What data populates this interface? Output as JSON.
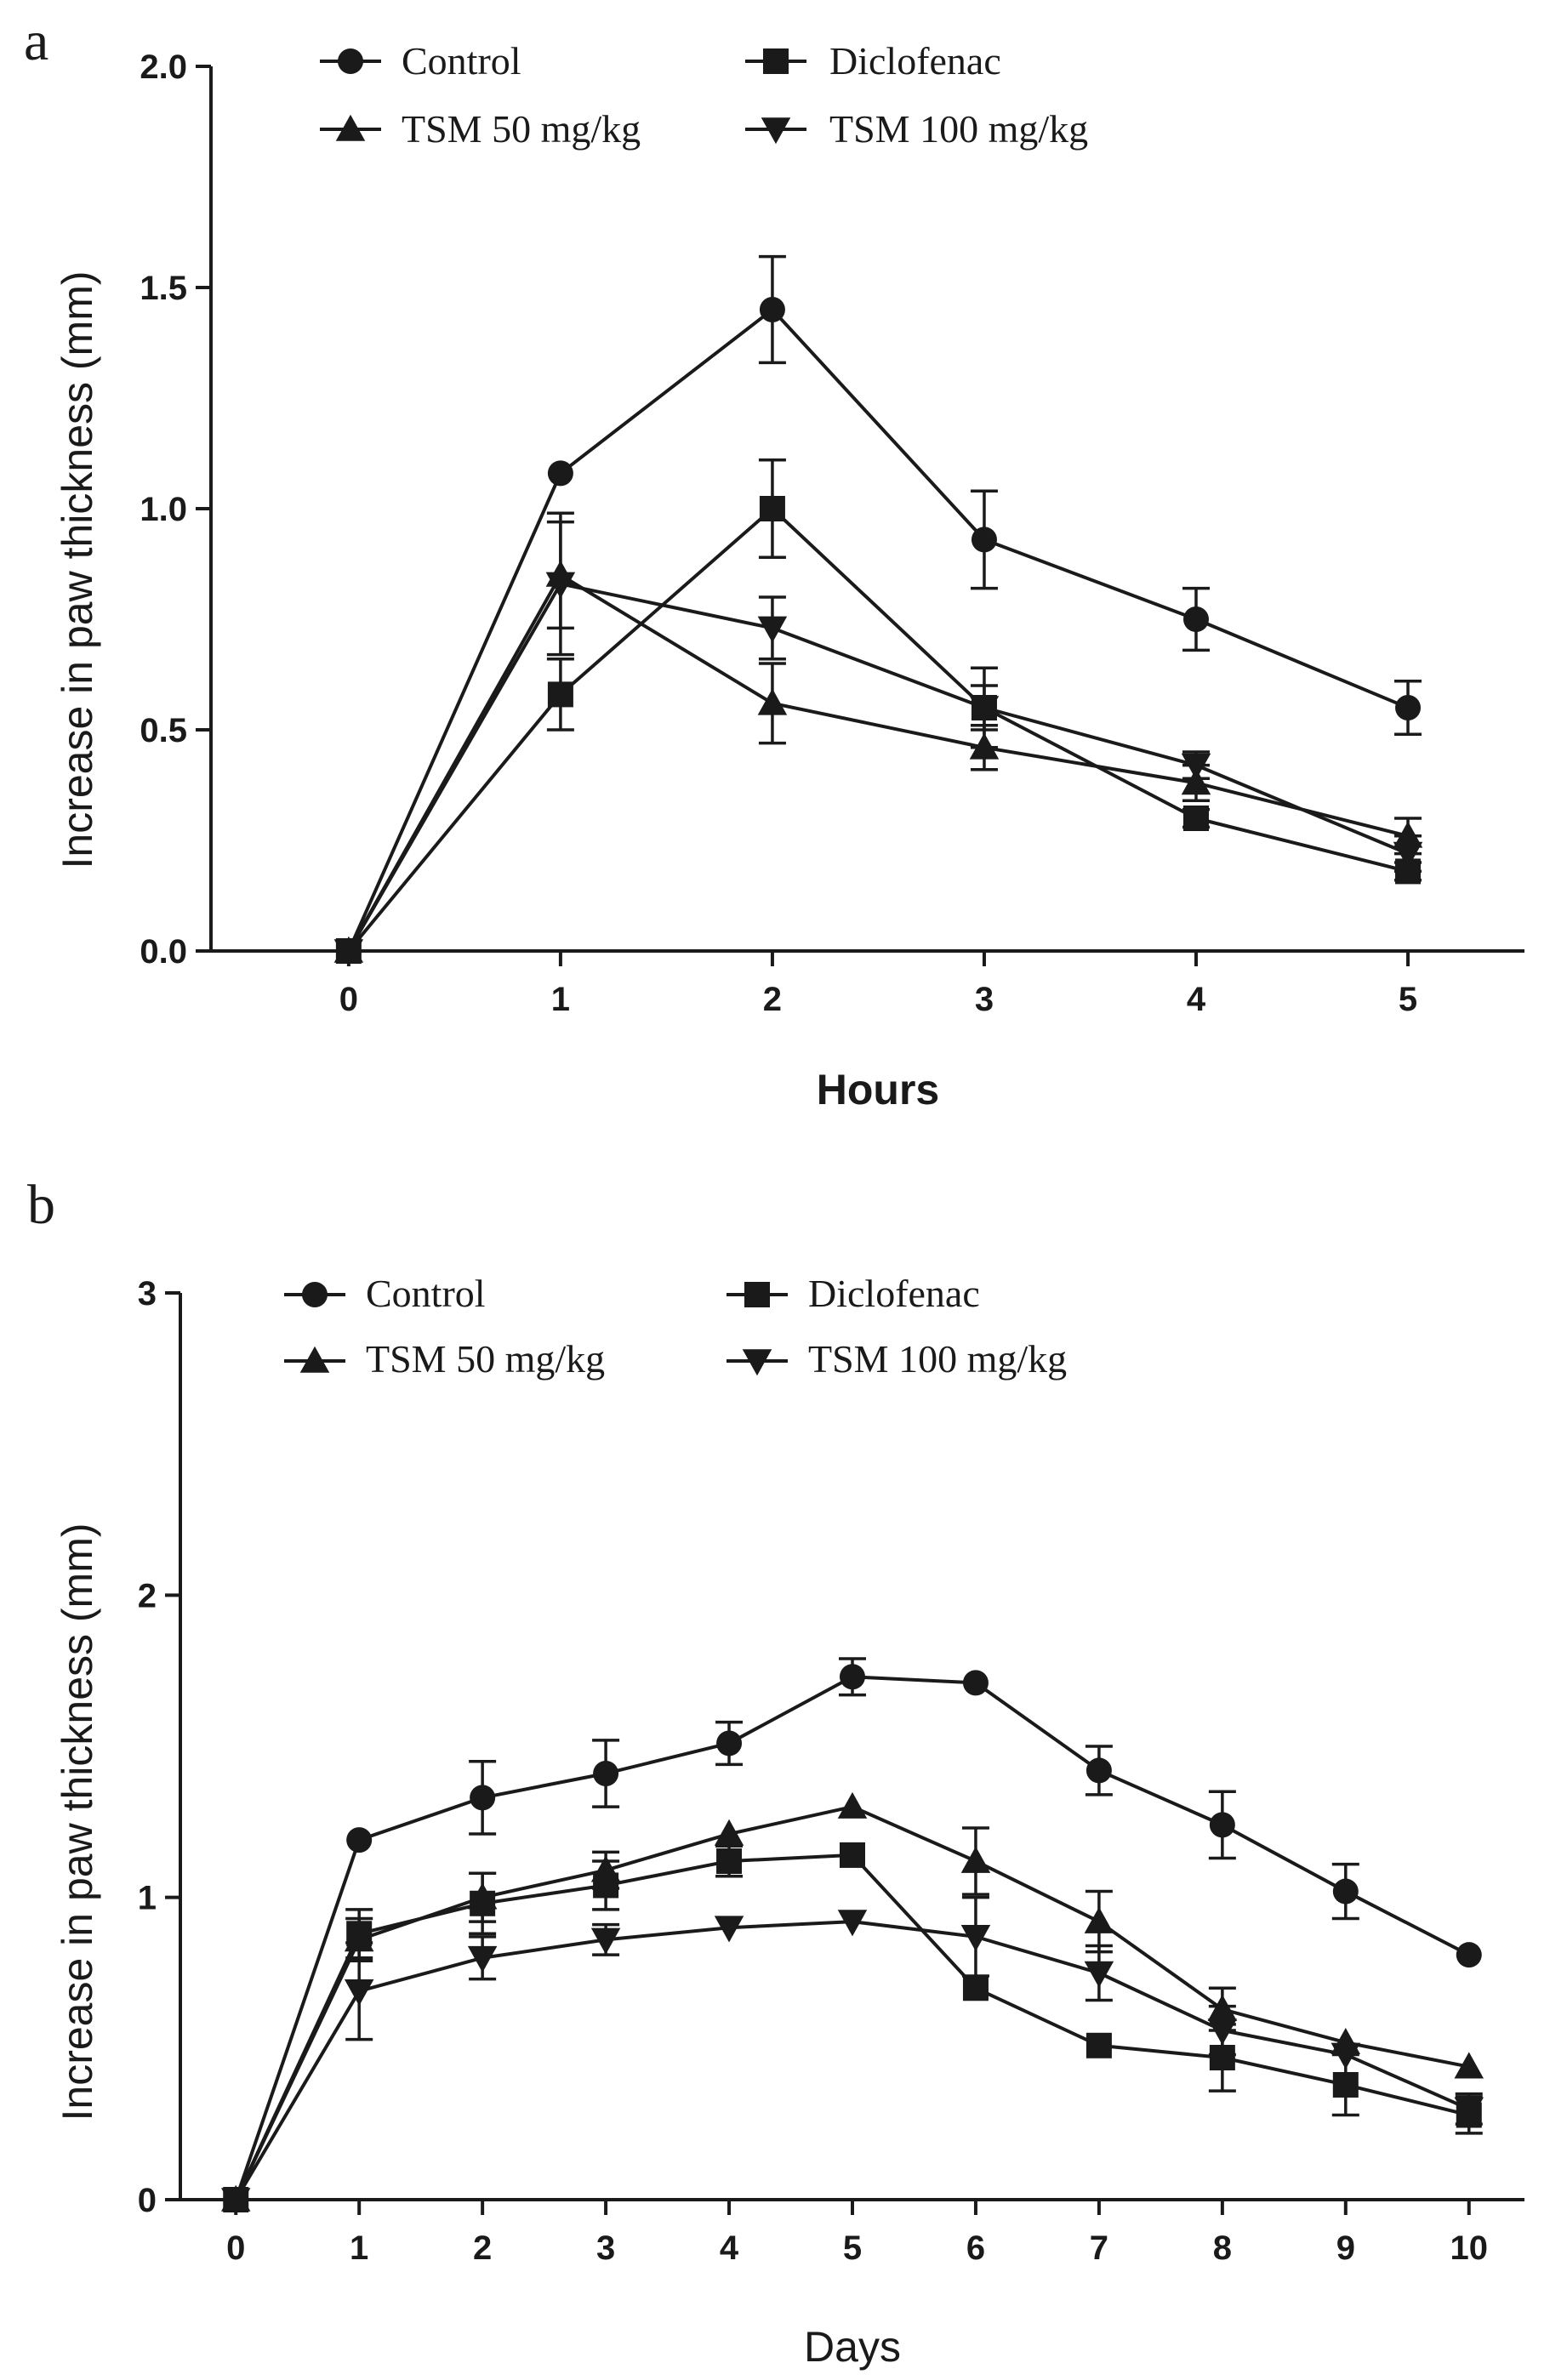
{
  "colors": {
    "ink": "#1a1a1a",
    "background": "#ffffff"
  },
  "chart_data": [
    {
      "panel_label": "a",
      "type": "line",
      "xlabel": "Hours",
      "xlabel_bold": true,
      "ylabel": "Increase in paw thickness (mm)",
      "x": [
        0,
        1,
        2,
        3,
        4,
        5
      ],
      "xticks": [
        "0",
        "1",
        "2",
        "3",
        "4",
        "5"
      ],
      "xlim": [
        -0.65,
        5.55
      ],
      "ylim": [
        0,
        2
      ],
      "yticks": [
        "0.0",
        "0.5",
        "1.0",
        "1.5",
        "2.0"
      ],
      "grid": false,
      "legend_position": "top-left",
      "series": [
        {
          "name": "Control",
          "marker": "circle",
          "values": [
            0,
            1.08,
            1.45,
            0.93,
            0.75,
            0.55
          ],
          "error": [
            0,
            0,
            0.12,
            0.11,
            0.07,
            0.06
          ]
        },
        {
          "name": "Diclofenac",
          "marker": "square",
          "values": [
            0,
            0.58,
            1.0,
            0.55,
            0.3,
            0.18
          ],
          "error": [
            0,
            0.08,
            0.11,
            0.05,
            0.02,
            0.02
          ]
        },
        {
          "name": "TSM 50 mg/kg",
          "marker": "triangle-up",
          "values": [
            0,
            0.85,
            0.56,
            0.46,
            0.38,
            0.26
          ],
          "error": [
            0,
            0.12,
            0.09,
            0.05,
            0.04,
            0.04
          ]
        },
        {
          "name": "TSM 100 mg/kg",
          "marker": "triangle-down",
          "values": [
            0,
            0.83,
            0.73,
            0.55,
            0.42,
            0.22
          ],
          "error": [
            0,
            0.16,
            0.07,
            0.09,
            0.03,
            0.04
          ]
        }
      ]
    },
    {
      "panel_label": "b",
      "type": "line",
      "xlabel": "Days",
      "xlabel_bold": false,
      "ylabel": "Increase in paw thickness (mm)",
      "x": [
        0,
        1,
        2,
        3,
        4,
        5,
        6,
        7,
        8,
        9,
        10
      ],
      "xticks": [
        "0",
        "1",
        "2",
        "3",
        "4",
        "5",
        "6",
        "7",
        "8",
        "9",
        "10"
      ],
      "xlim": [
        -0.45,
        10.45
      ],
      "ylim": [
        0,
        3
      ],
      "yticks": [
        "0",
        "1",
        "2",
        "3"
      ],
      "grid": false,
      "legend_position": "top-left",
      "series": [
        {
          "name": "Control",
          "marker": "circle",
          "values": [
            0,
            1.19,
            1.33,
            1.41,
            1.51,
            1.73,
            1.71,
            1.42,
            1.24,
            1.02,
            0.81
          ],
          "error": [
            0,
            0,
            0.12,
            0.11,
            0.07,
            0.06,
            0,
            0.08,
            0.11,
            0.09,
            0
          ]
        },
        {
          "name": "Diclofenac",
          "marker": "square",
          "values": [
            0,
            0.88,
            0.98,
            1.04,
            1.12,
            1.14,
            0.7,
            0.51,
            0.47,
            0.38,
            0.28
          ],
          "error": [
            0,
            0.08,
            0.1,
            0.08,
            0.05,
            0,
            0,
            0,
            0.11,
            0.1,
            0.06
          ]
        },
        {
          "name": "TSM 50 mg/kg",
          "marker": "triangle-up",
          "values": [
            0,
            0.86,
            1.0,
            1.09,
            1.21,
            1.3,
            1.12,
            0.92,
            0.63,
            0.52,
            0.44
          ],
          "error": [
            0,
            0.07,
            0.08,
            0.06,
            0,
            0,
            0.11,
            0.1,
            0.07,
            0,
            0
          ]
        },
        {
          "name": "TSM 100 mg/kg",
          "marker": "triangle-down",
          "values": [
            0,
            0.69,
            0.8,
            0.86,
            0.9,
            0.92,
            0.87,
            0.75,
            0.56,
            0.48,
            0.3
          ],
          "error": [
            0,
            0.16,
            0.07,
            0.05,
            0,
            0,
            0.13,
            0.09,
            0.08,
            0,
            0.05
          ]
        }
      ]
    }
  ]
}
